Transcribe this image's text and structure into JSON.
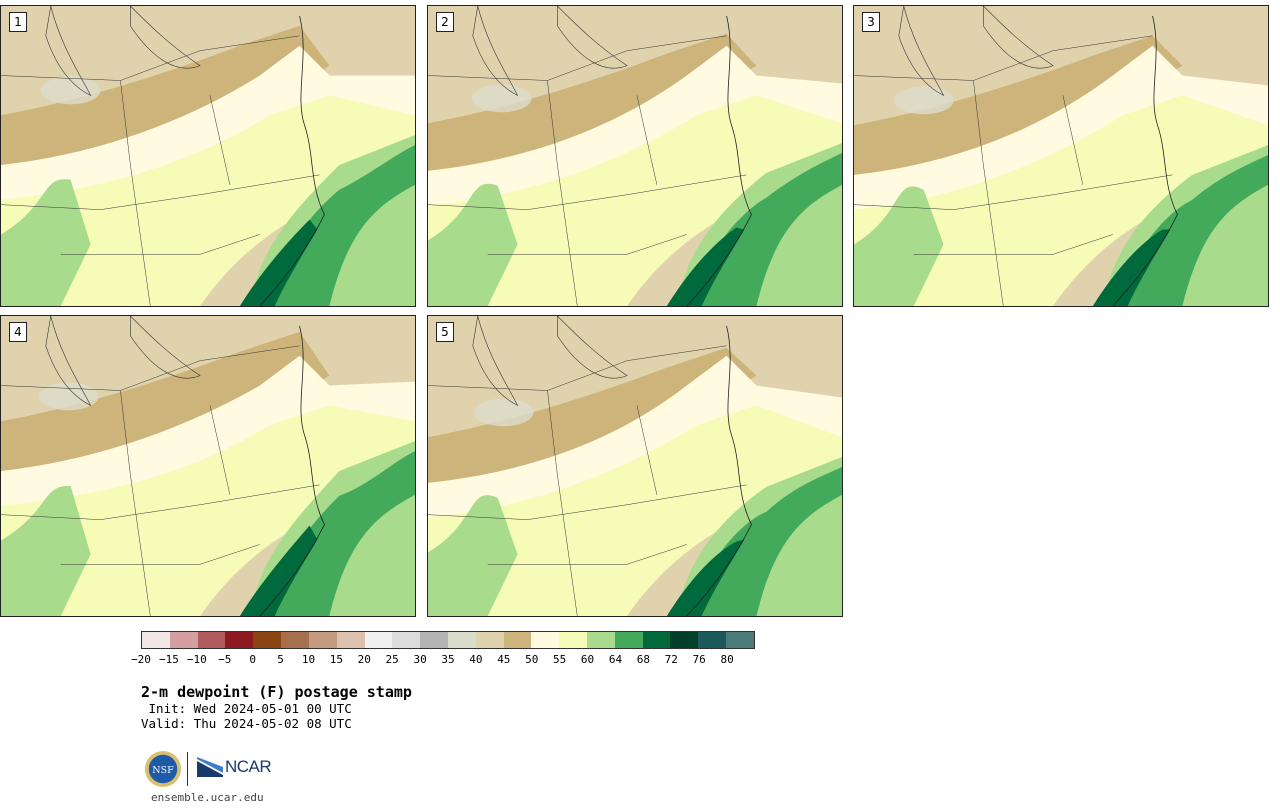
{
  "panels": [
    {
      "label": "1"
    },
    {
      "label": "2"
    },
    {
      "label": "3"
    },
    {
      "label": "4"
    },
    {
      "label": "5"
    }
  ],
  "colorbar": {
    "tick_labels": [
      "−20",
      "−15",
      "−10",
      "−5",
      "0",
      "5",
      "10",
      "15",
      "20",
      "25",
      "30",
      "35",
      "40",
      "45",
      "50",
      "55",
      "60",
      "64",
      "68",
      "72",
      "76",
      "80"
    ],
    "colors": [
      "#f2e6e6",
      "#d49ea0",
      "#b05a60",
      "#8c1a20",
      "#8b4513",
      "#a8704a",
      "#c49a80",
      "#dcc0b0",
      "#f0f0f0",
      "#dcdcdc",
      "#b4b4b4",
      "#dcdccc",
      "#e0d2ad",
      "#cdb47a",
      "#fffae0",
      "#f6fbb8",
      "#a8db8c",
      "#42aa5a",
      "#006a3c",
      "#00402a",
      "#1a5a5a",
      "#4a7a7a"
    ]
  },
  "title": "2-m dewpoint (F) postage stamp",
  "init": " Init: Wed 2024-05-01 00 UTC",
  "valid": "Valid: Thu 2024-05-02 08 UTC",
  "logos": {
    "nsf": "NSF",
    "ncar": "NCAR"
  },
  "site": "ensemble.ucar.edu",
  "field_colors": {
    "dry": "#e0d2ad",
    "tan": "#cdb47a",
    "gray": "#dcdccc",
    "cream": "#fffae0",
    "lightyellow": "#f6fbb8",
    "lightgreen": "#a8db8c",
    "green": "#42aa5a",
    "darkgreen": "#006a3c"
  }
}
